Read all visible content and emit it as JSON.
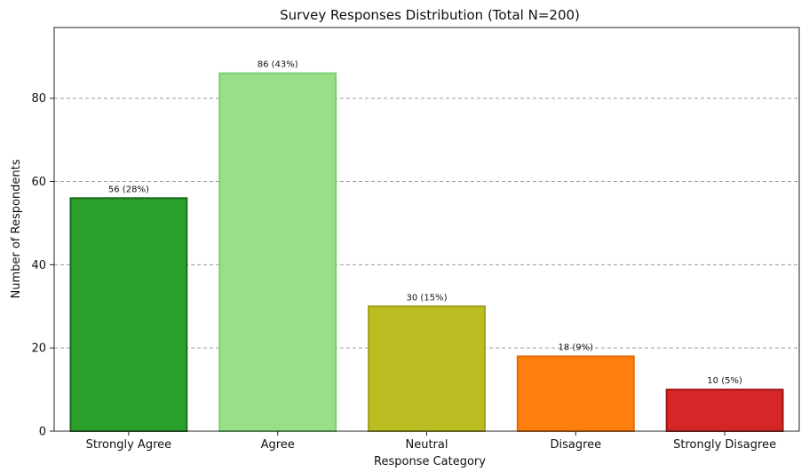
{
  "chart_data": {
    "type": "bar",
    "title": "Survey Responses Distribution (Total N=200)",
    "xlabel": "Response Category",
    "ylabel": "Number of Respondents",
    "categories": [
      "Strongly Agree",
      "Agree",
      "Neutral",
      "Disagree",
      "Strongly Disagree"
    ],
    "values": [
      56,
      86,
      30,
      18,
      10
    ],
    "value_labels": [
      "56 (28%)",
      "86 (43%)",
      "30 (15%)",
      "18 (9%)",
      "10 (5%)"
    ],
    "bar_colors": [
      "#2ca02c",
      "#98df8a",
      "#bcbd22",
      "#ff7f0e",
      "#d62728"
    ],
    "bar_edge_colors": [
      "#1a6b1a",
      "#7ccf6f",
      "#a2a31b",
      "#e06a0a",
      "#a01515"
    ],
    "ylim": [
      0,
      97
    ],
    "yticks": [
      0,
      20,
      40,
      60,
      80
    ],
    "ytick_labels": [
      "0",
      "20",
      "40",
      "60",
      "80"
    ],
    "grid": "y-dashed",
    "legend": "none"
  }
}
